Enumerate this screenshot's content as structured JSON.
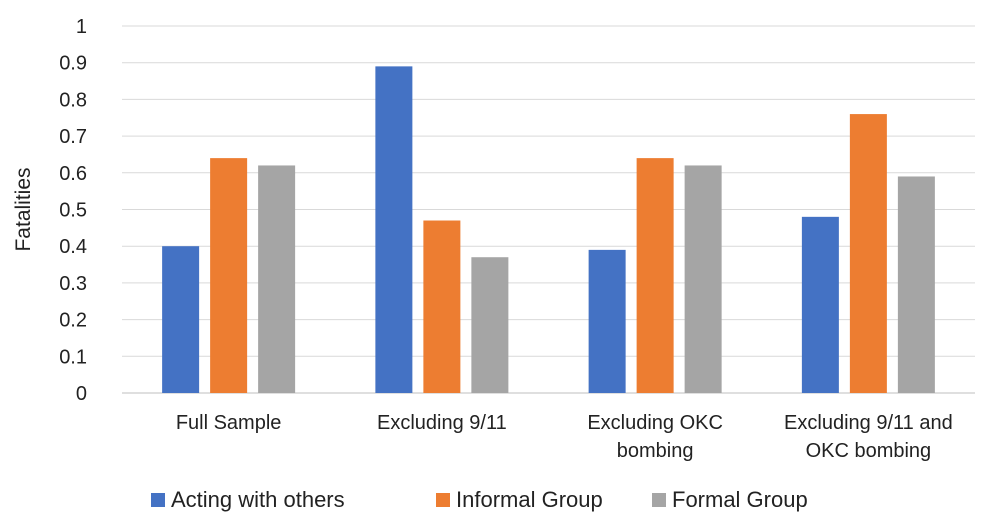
{
  "chart_data": {
    "type": "bar",
    "title": "",
    "xlabel": "",
    "ylabel": "Fatalities",
    "ylim": [
      0,
      1
    ],
    "y_ticks": [
      "0",
      "0.1",
      "0.2",
      "0.3",
      "0.4",
      "0.5",
      "0.6",
      "0.7",
      "0.8",
      "0.9",
      "1"
    ],
    "categories": [
      [
        "Full Sample"
      ],
      [
        "Excluding 9/11"
      ],
      [
        "Excluding OKC",
        "bombing"
      ],
      [
        "Excluding 9/11 and",
        "OKC bombing"
      ]
    ],
    "series": [
      {
        "name": "Acting with others",
        "color": "#4472c4",
        "values": [
          0.4,
          0.89,
          0.39,
          0.48
        ]
      },
      {
        "name": "Informal Group",
        "color": "#ed7d31",
        "values": [
          0.64,
          0.47,
          0.64,
          0.76
        ]
      },
      {
        "name": "Formal Group",
        "color": "#a5a5a5",
        "values": [
          0.62,
          0.37,
          0.62,
          0.59
        ]
      }
    ],
    "grid": true,
    "legend_position": "bottom"
  }
}
